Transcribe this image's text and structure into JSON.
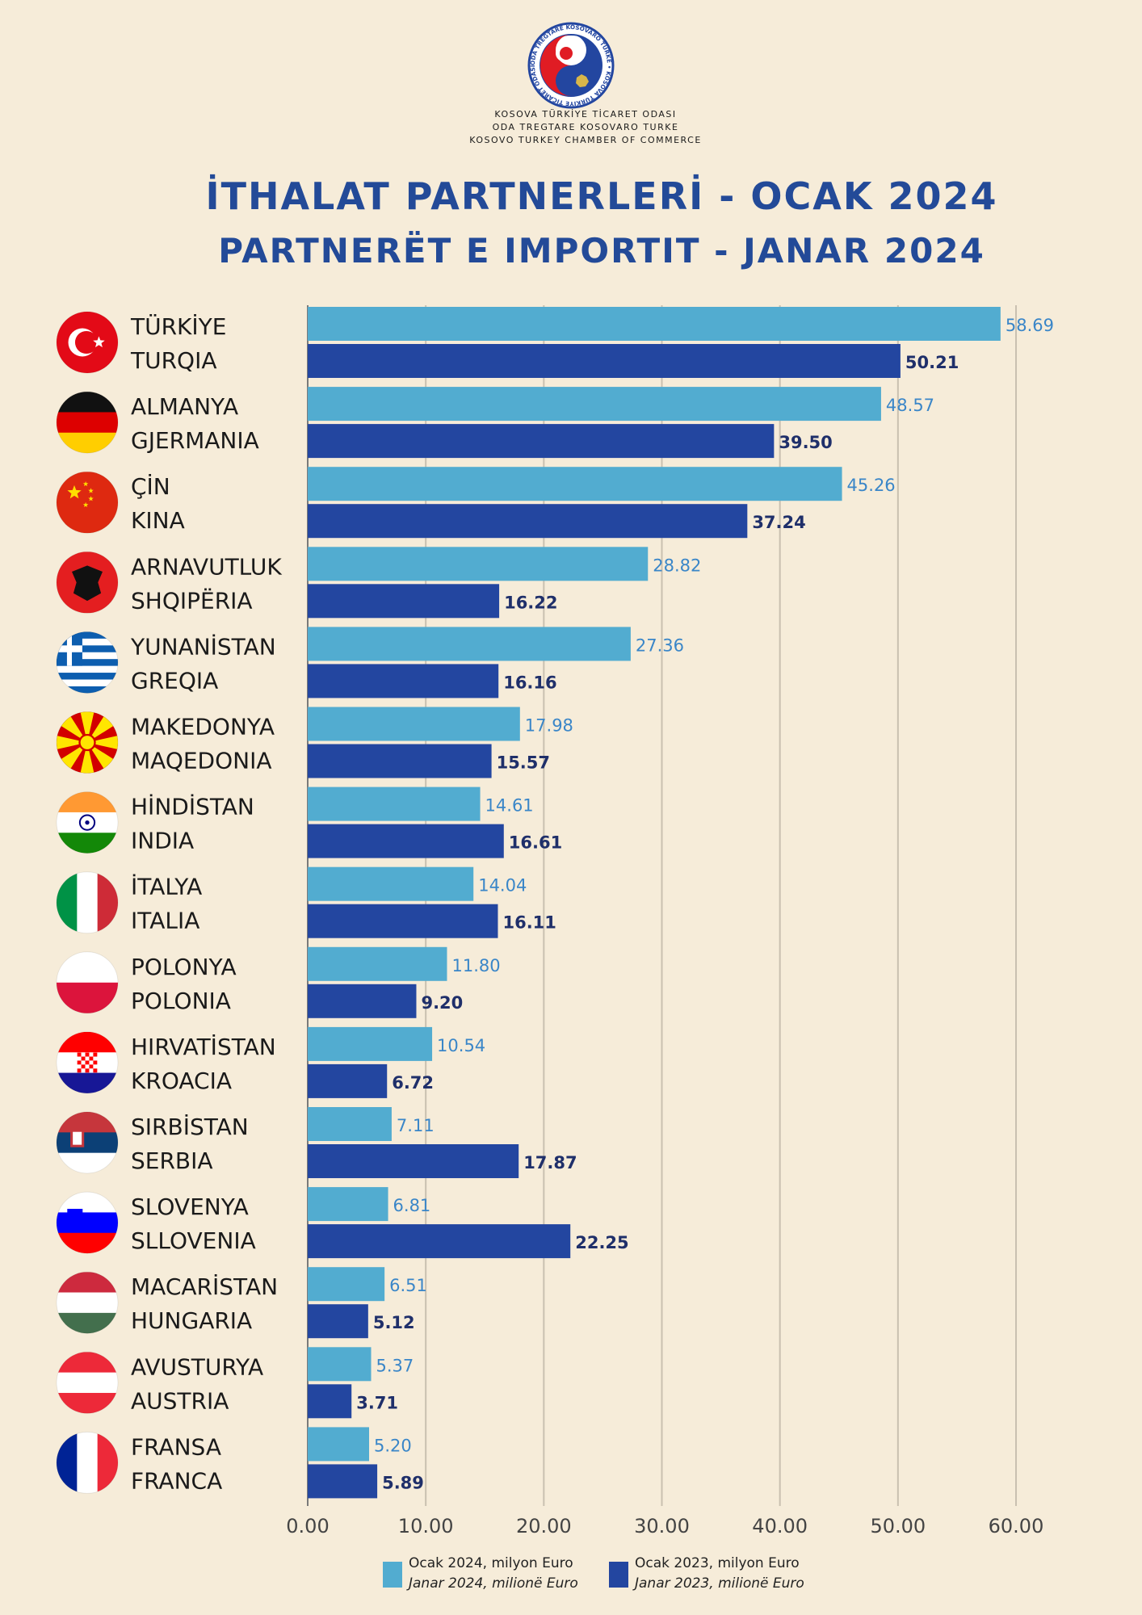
{
  "header": {
    "logo_ring_text": "ODA TREGTARE KOSOVARO TURKE • KOSOVA TÜRKİYE TİCARET ODASI",
    "org_lines": [
      "KOSOVA TÜRKİYE TİCARET ODASI",
      "ODA TREGTARE KOSOVARO TURKE",
      "KOSOVO TURKEY CHAMBER OF COMMERCE"
    ],
    "title_line1": "İTHALAT PARTNERLERİ - OCAK 2024",
    "title_line2": "PARTNERËT E IMPORTIT - JANAR 2024"
  },
  "colors": {
    "background": "#f6ecd9",
    "series_2024": "#52acd0",
    "series_2023": "#2346a0",
    "title": "#234a98"
  },
  "chart_data": {
    "type": "bar",
    "orientation": "horizontal",
    "categories": [
      [
        "TÜRKİYE",
        "TURQIA"
      ],
      [
        "ALMANYA",
        "GJERMANIA"
      ],
      [
        "ÇİN",
        "KINA"
      ],
      [
        "ARNAVUTLUK",
        "SHQIPËRIA"
      ],
      [
        "YUNANİSTAN",
        "GREQIA"
      ],
      [
        "MAKEDONYA",
        "MAQEDONIA"
      ],
      [
        "HİNDİSTAN",
        "INDIA"
      ],
      [
        "İTALYA",
        "ITALIA"
      ],
      [
        "POLONYA",
        "POLONIA"
      ],
      [
        "HIRVATİSTAN",
        "KROACIA"
      ],
      [
        "SIRBİSTAN",
        "SERBIA"
      ],
      [
        "SLOVENYA",
        "SLLOVENIA"
      ],
      [
        "MACARİSTAN",
        "HUNGARIA"
      ],
      [
        "AVUSTURYA",
        "AUSTRIA"
      ],
      [
        "FRANSA",
        "FRANCA"
      ]
    ],
    "flags": [
      "turkey-flag-icon",
      "germany-flag-icon",
      "china-flag-icon",
      "albania-flag-icon",
      "greece-flag-icon",
      "north-macedonia-flag-icon",
      "india-flag-icon",
      "italy-flag-icon",
      "poland-flag-icon",
      "croatia-flag-icon",
      "serbia-flag-icon",
      "slovenia-flag-icon",
      "hungary-flag-icon",
      "austria-flag-icon",
      "france-flag-icon"
    ],
    "series": [
      {
        "name": [
          "Ocak 2024, milyon Euro",
          "Janar 2024, milionë Euro"
        ],
        "values": [
          58.69,
          48.57,
          45.26,
          28.82,
          27.36,
          17.98,
          14.61,
          14.04,
          11.8,
          10.54,
          7.11,
          6.81,
          6.51,
          5.37,
          5.2
        ],
        "labels": [
          "58.69",
          "48.57",
          "45.26",
          "28.82",
          "27.36",
          "17.98",
          "14.61",
          "14.04",
          "11.80",
          "10.54",
          "7.11",
          "6.81",
          "6.51",
          "5.37",
          "5.20"
        ]
      },
      {
        "name": [
          "Ocak 2023, milyon Euro",
          "Janar 2023, milionë Euro"
        ],
        "values": [
          50.21,
          39.5,
          37.24,
          16.22,
          16.16,
          15.57,
          16.61,
          16.11,
          9.2,
          6.72,
          17.87,
          22.25,
          5.12,
          3.71,
          5.89
        ],
        "labels": [
          "50.21",
          "39.50",
          "37.24",
          "16.22",
          "16.16",
          "15.57",
          "16.61",
          "16.11",
          "9.20",
          "6.72",
          "17.87",
          "22.25",
          "5.12",
          "3.71",
          "5.89"
        ]
      }
    ],
    "xlim": [
      0,
      60
    ],
    "xticks": [
      "0.00",
      "10.00",
      "20.00",
      "30.00",
      "40.00",
      "50.00",
      "60.00"
    ],
    "grid": "vertical",
    "legend_position": "bottom"
  }
}
